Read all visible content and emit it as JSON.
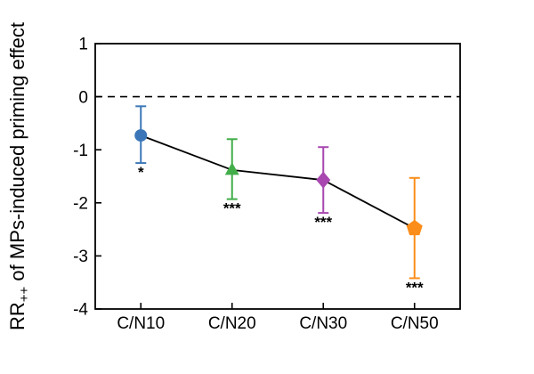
{
  "figure": {
    "background": "#ffffff",
    "axis_color": "#000000"
  },
  "chart_data": {
    "type": "line",
    "title": "",
    "xlabel": "",
    "ylabel": "RR++ of MPs-induced priming effect",
    "ylabel_parts": {
      "base": "RR",
      "subscript": "++",
      "rest": " of MPs-induced priming effect"
    },
    "categories": [
      "C/N10",
      "C/N20",
      "C/N30",
      "C/N50"
    ],
    "ylim": [
      -4,
      1
    ],
    "yticks": [
      "1",
      "0",
      "-1",
      "-2",
      "-3",
      "-4"
    ],
    "ytick_values": [
      1,
      0,
      -1,
      -2,
      -3,
      -4
    ],
    "grid": false,
    "legend": false,
    "reference_line": {
      "y": 0,
      "style": "dashed",
      "color": "#000000"
    },
    "series": [
      {
        "name": "MPs-induced priming effect",
        "line_color": "#000000",
        "points": [
          {
            "category": "C/N10",
            "value": -0.73,
            "ci_low": -1.25,
            "ci_high": -0.18,
            "marker": "circle",
            "color": "#3b77b8",
            "significance": "*"
          },
          {
            "category": "C/N20",
            "value": -1.38,
            "ci_low": -1.93,
            "ci_high": -0.8,
            "marker": "triangle",
            "color": "#42ae4a",
            "significance": "***"
          },
          {
            "category": "C/N30",
            "value": -1.57,
            "ci_low": -2.19,
            "ci_high": -0.95,
            "marker": "diamond",
            "color": "#a847b0",
            "significance": "***"
          },
          {
            "category": "C/N50",
            "value": -2.48,
            "ci_low": -3.42,
            "ci_high": -1.53,
            "marker": "pentagon",
            "color": "#fb8d1a",
            "significance": "***"
          }
        ]
      }
    ]
  }
}
